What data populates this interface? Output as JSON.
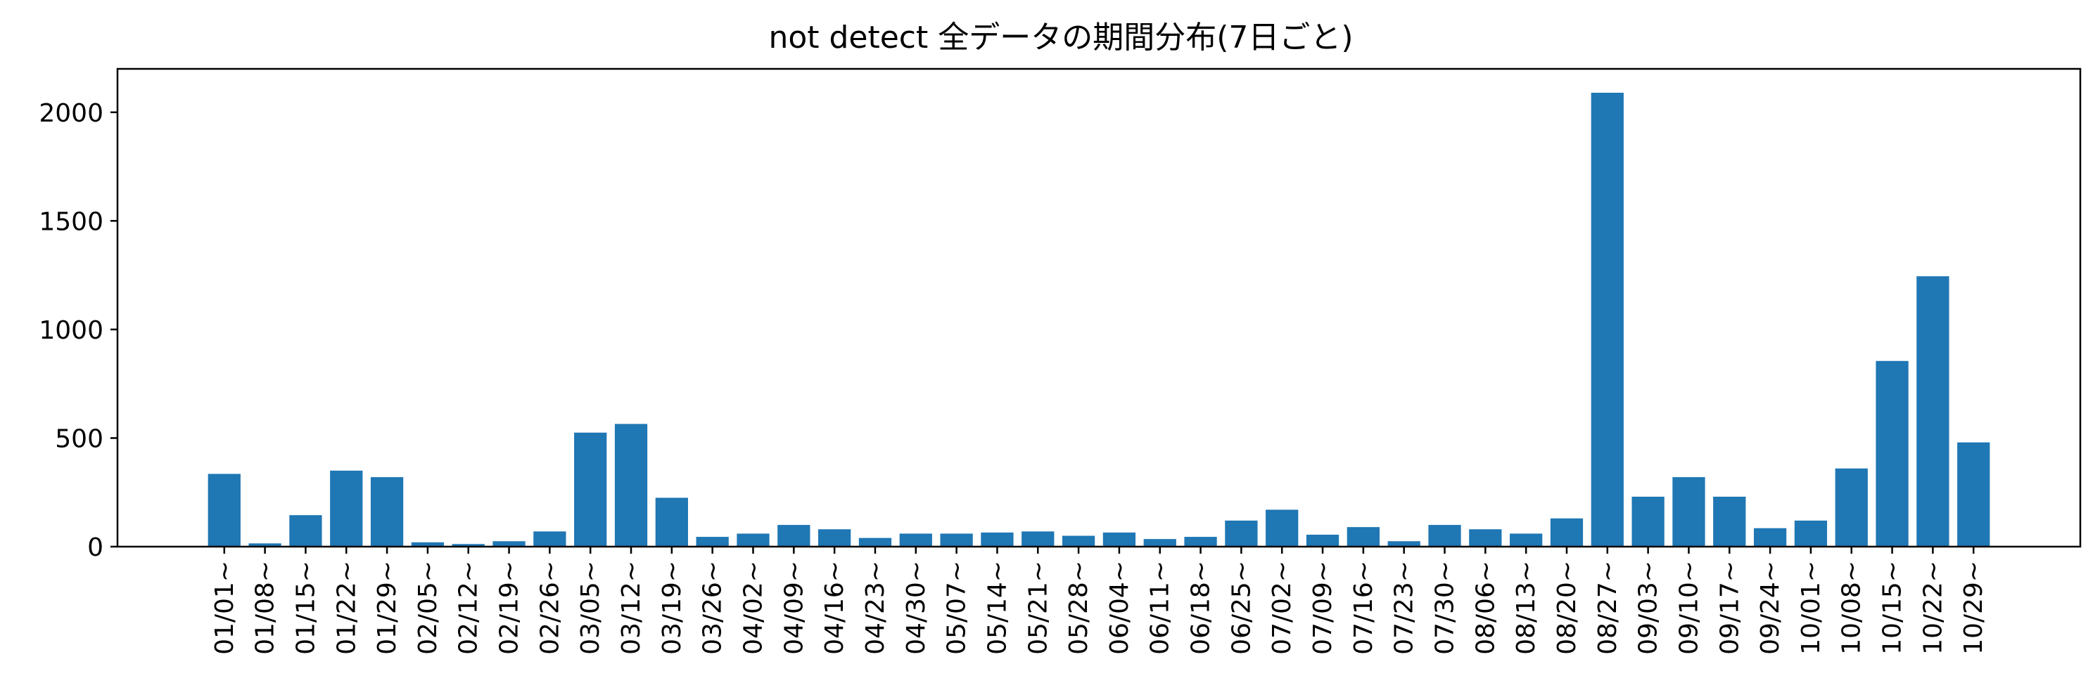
{
  "chart_data": {
    "type": "bar",
    "title": "not detect 全データの期間分布(7日ごと)",
    "xlabel": "",
    "ylabel": "",
    "ylim": [
      0,
      2200
    ],
    "yticks": [
      0,
      500,
      1000,
      1500,
      2000
    ],
    "grid": false,
    "bar_color": "#1f77b4",
    "categories": [
      "01/01~",
      "01/08~",
      "01/15~",
      "01/22~",
      "01/29~",
      "02/05~",
      "02/12~",
      "02/19~",
      "02/26~",
      "03/05~",
      "03/12~",
      "03/19~",
      "03/26~",
      "04/02~",
      "04/09~",
      "04/16~",
      "04/23~",
      "04/30~",
      "05/07~",
      "05/14~",
      "05/21~",
      "05/28~",
      "06/04~",
      "06/11~",
      "06/18~",
      "06/25~",
      "07/02~",
      "07/09~",
      "07/16~",
      "07/23~",
      "07/30~",
      "08/06~",
      "08/13~",
      "08/20~",
      "08/27~",
      "09/03~",
      "09/10~",
      "09/17~",
      "09/24~",
      "10/01~",
      "10/08~",
      "10/15~",
      "10/22~",
      "10/29~"
    ],
    "values": [
      335,
      15,
      145,
      350,
      320,
      20,
      12,
      25,
      70,
      525,
      565,
      225,
      45,
      60,
      100,
      80,
      40,
      60,
      60,
      65,
      70,
      50,
      65,
      35,
      45,
      120,
      170,
      55,
      90,
      25,
      100,
      80,
      60,
      130,
      2090,
      230,
      320,
      230,
      85,
      120,
      360,
      855,
      1245,
      480
    ]
  }
}
